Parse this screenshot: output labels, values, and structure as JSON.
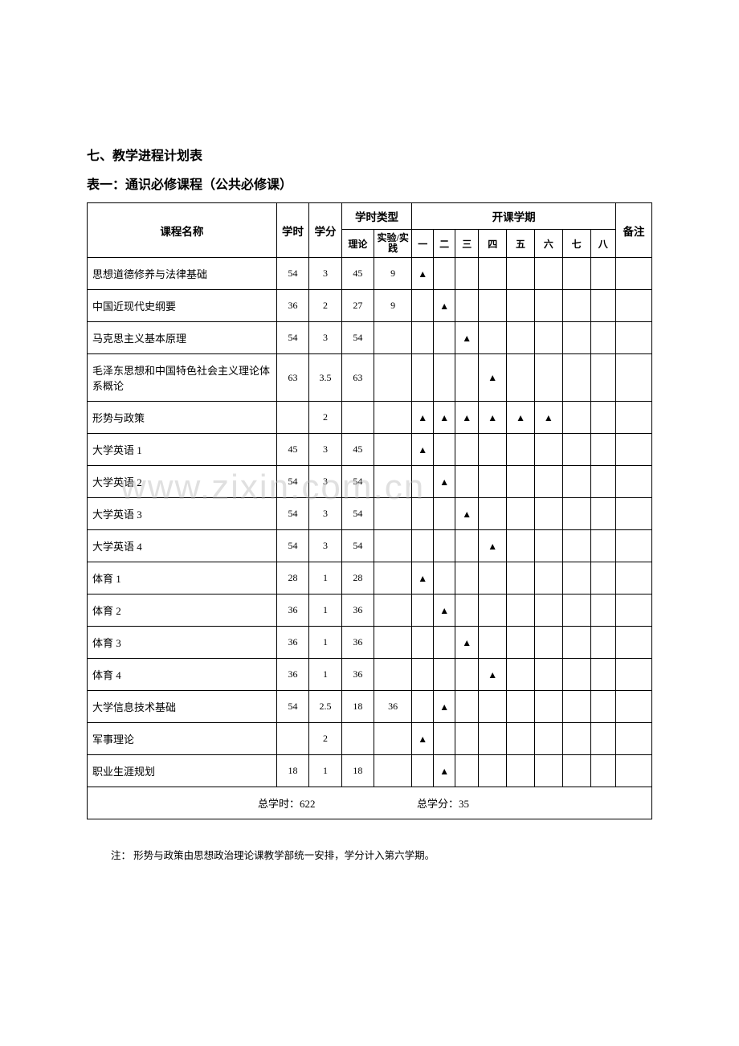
{
  "headings": {
    "section": "七、教学进程计划表",
    "table_title": "表一：通识必修课程（公共必修课）"
  },
  "columns": {
    "name": "课程名称",
    "hours": "学时",
    "credits": "学分",
    "hour_type": "学时类型",
    "theory": "理论",
    "practice": "实验/实践",
    "semester": "开课学期",
    "s1": "一",
    "s2": "二",
    "s3": "三",
    "s4": "四",
    "s5": "五",
    "s6": "六",
    "s7": "七",
    "s8": "八",
    "remark": "备注"
  },
  "mark": "▲",
  "rows": [
    {
      "name": "思想道德修养与法律基础",
      "hours": "54",
      "credits": "3",
      "theory": "45",
      "practice": "9",
      "sem": [
        1,
        0,
        0,
        0,
        0,
        0,
        0,
        0
      ]
    },
    {
      "name": "中国近现代史纲要",
      "hours": "36",
      "credits": "2",
      "theory": "27",
      "practice": "9",
      "sem": [
        0,
        1,
        0,
        0,
        0,
        0,
        0,
        0
      ]
    },
    {
      "name": "马克思主义基本原理",
      "hours": "54",
      "credits": "3",
      "theory": "54",
      "practice": "",
      "sem": [
        0,
        0,
        1,
        0,
        0,
        0,
        0,
        0
      ]
    },
    {
      "name": "毛泽东思想和中国特色社会主义理论体系概论",
      "hours": "63",
      "credits": "3.5",
      "theory": "63",
      "practice": "",
      "sem": [
        0,
        0,
        0,
        1,
        0,
        0,
        0,
        0
      ]
    },
    {
      "name": "形势与政策",
      "hours": "",
      "credits": "2",
      "theory": "",
      "practice": "",
      "sem": [
        1,
        1,
        1,
        1,
        1,
        1,
        0,
        0
      ]
    },
    {
      "name": "大学英语 1",
      "hours": "45",
      "credits": "3",
      "theory": "45",
      "practice": "",
      "sem": [
        1,
        0,
        0,
        0,
        0,
        0,
        0,
        0
      ]
    },
    {
      "name": "大学英语 2",
      "hours": "54",
      "credits": "3",
      "theory": "54",
      "practice": "",
      "sem": [
        0,
        1,
        0,
        0,
        0,
        0,
        0,
        0
      ]
    },
    {
      "name": "大学英语 3",
      "hours": "54",
      "credits": "3",
      "theory": "54",
      "practice": "",
      "sem": [
        0,
        0,
        1,
        0,
        0,
        0,
        0,
        0
      ]
    },
    {
      "name": "大学英语 4",
      "hours": "54",
      "credits": "3",
      "theory": "54",
      "practice": "",
      "sem": [
        0,
        0,
        0,
        1,
        0,
        0,
        0,
        0
      ]
    },
    {
      "name": "体育 1",
      "hours": "28",
      "credits": "1",
      "theory": "28",
      "practice": "",
      "sem": [
        1,
        0,
        0,
        0,
        0,
        0,
        0,
        0
      ]
    },
    {
      "name": "体育 2",
      "hours": "36",
      "credits": "1",
      "theory": "36",
      "practice": "",
      "sem": [
        0,
        1,
        0,
        0,
        0,
        0,
        0,
        0
      ]
    },
    {
      "name": "体育 3",
      "hours": "36",
      "credits": "1",
      "theory": "36",
      "practice": "",
      "sem": [
        0,
        0,
        1,
        0,
        0,
        0,
        0,
        0
      ]
    },
    {
      "name": "体育 4",
      "hours": "36",
      "credits": "1",
      "theory": "36",
      "practice": "",
      "sem": [
        0,
        0,
        0,
        1,
        0,
        0,
        0,
        0
      ]
    },
    {
      "name": "大学信息技术基础",
      "hours": "54",
      "credits": "2.5",
      "theory": "18",
      "practice": "36",
      "sem": [
        0,
        1,
        0,
        0,
        0,
        0,
        0,
        0
      ]
    },
    {
      "name": "军事理论",
      "hours": "",
      "credits": "2",
      "theory": "",
      "practice": "",
      "sem": [
        1,
        0,
        0,
        0,
        0,
        0,
        0,
        0
      ]
    },
    {
      "name": "职业生涯规划",
      "hours": "18",
      "credits": "1",
      "theory": "18",
      "practice": "",
      "sem": [
        0,
        1,
        0,
        0,
        0,
        0,
        0,
        0
      ]
    }
  ],
  "summary": {
    "total_hours": "总学时：622",
    "total_credits": "总学分：35"
  },
  "footnote": "注： 形势与政策由思想政治理论课教学部统一安排，学分计入第六学期。",
  "watermark": "www.zixin.com.cn"
}
